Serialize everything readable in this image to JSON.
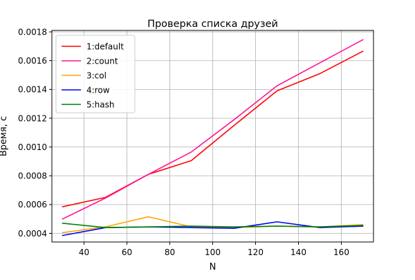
{
  "chart_data": {
    "type": "line",
    "title": "Проверка списка друзей",
    "xlabel": "N",
    "ylabel": "Время, с",
    "xlim": [
      25,
      175
    ],
    "ylim": [
      0.00034,
      0.00181
    ],
    "x_ticks": [
      {
        "value": 40,
        "label": "40"
      },
      {
        "value": 60,
        "label": "60"
      },
      {
        "value": 80,
        "label": "80"
      },
      {
        "value": 100,
        "label": "100"
      },
      {
        "value": 120,
        "label": "120"
      },
      {
        "value": 140,
        "label": "140"
      },
      {
        "value": 160,
        "label": "160"
      }
    ],
    "y_ticks": [
      {
        "value": 0.0004,
        "label": "0.0004"
      },
      {
        "value": 0.0006,
        "label": "0.0006"
      },
      {
        "value": 0.0008,
        "label": "0.0008"
      },
      {
        "value": 0.001,
        "label": "0.0010"
      },
      {
        "value": 0.0012,
        "label": "0.0012"
      },
      {
        "value": 0.0014,
        "label": "0.0014"
      },
      {
        "value": 0.0016,
        "label": "0.0016"
      },
      {
        "value": 0.0018,
        "label": "0.0018"
      }
    ],
    "grid": true,
    "legend_position": "top-left",
    "x": [
      30,
      50,
      70,
      90,
      110,
      130,
      150,
      170
    ],
    "series": [
      {
        "name": "1:default",
        "color": "#ff0000",
        "values": [
          0.000585,
          0.00065,
          0.00081,
          0.000905,
          0.00115,
          0.00139,
          0.00151,
          0.001665
        ]
      },
      {
        "name": "2:count",
        "color": "#ff1493",
        "values": [
          0.0005,
          0.000645,
          0.00081,
          0.000965,
          0.00119,
          0.001425,
          0.001585,
          0.001745
        ]
      },
      {
        "name": "3:col",
        "color": "#ffa500",
        "values": [
          0.000405,
          0.000445,
          0.000515,
          0.000445,
          0.00044,
          0.00045,
          0.000445,
          0.00046
        ]
      },
      {
        "name": "4:row",
        "color": "#0000ff",
        "values": [
          0.000385,
          0.00044,
          0.000445,
          0.00044,
          0.000435,
          0.00048,
          0.00044,
          0.00045
        ]
      },
      {
        "name": "5:hash",
        "color": "#008000",
        "values": [
          0.00047,
          0.00044,
          0.000445,
          0.00045,
          0.000445,
          0.00045,
          0.000445,
          0.000455
        ]
      }
    ]
  }
}
